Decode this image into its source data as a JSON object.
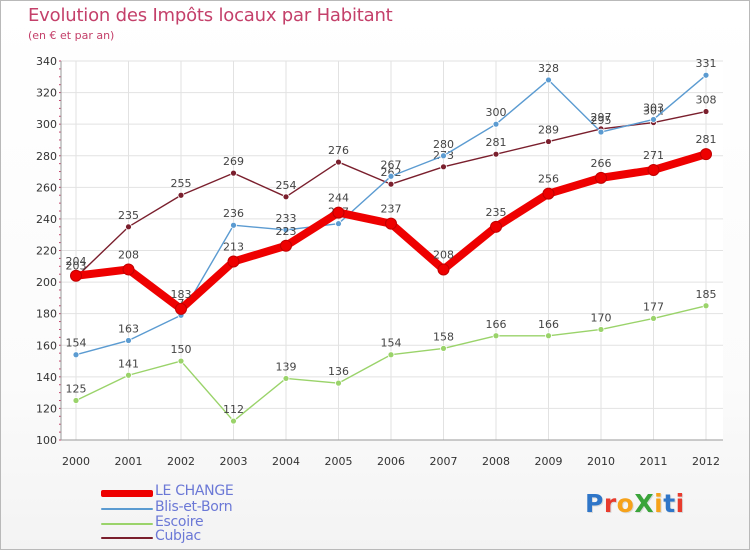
{
  "title": "Evolution des Impôts locaux par Habitant",
  "subtitle": "(en € et par an)",
  "logo_text": "ProXiti",
  "logo_colors": [
    "#2f76c8",
    "#e83b2d",
    "#f6a21a",
    "#3aa43a",
    "#f6a21a",
    "#2f76c8",
    "#e83b2d"
  ],
  "chart_data": {
    "type": "line",
    "title": "Evolution des Impôts locaux par Habitant",
    "ylabel": "(en € et par an)",
    "xlabel": "",
    "x": [
      "2000",
      "2001",
      "2002",
      "2003",
      "2004",
      "2005",
      "2006",
      "2007",
      "2008",
      "2009",
      "2010",
      "2011",
      "2012"
    ],
    "ylim": [
      100,
      340
    ],
    "yticks": [
      "100",
      "120",
      "140",
      "160",
      "180",
      "200",
      "220",
      "240",
      "260",
      "280",
      "300",
      "320",
      "340"
    ],
    "grid": true,
    "legend_position": "bottom-left",
    "series": [
      {
        "name": "Cubjac",
        "color": "#7a1f2d",
        "emphasis": false,
        "values": [
          203,
          235,
          255,
          269,
          254,
          276,
          262,
          273,
          281,
          289,
          297,
          301,
          308
        ],
        "labels": [
          "203",
          "235",
          "255",
          "269",
          "254",
          "276",
          "262",
          "273",
          "281",
          "289",
          "297",
          "301",
          "308"
        ]
      },
      {
        "name": "Blis-et-Born",
        "color": "#5b9bd1",
        "emphasis": false,
        "values": [
          154,
          163,
          179,
          236,
          233,
          237,
          267,
          280,
          300,
          328,
          295,
          303,
          331
        ],
        "labels": [
          "154",
          "163",
          "179",
          "236",
          "233",
          "237",
          "267",
          "280",
          "300",
          "328",
          "295",
          "303",
          "331"
        ]
      },
      {
        "name": "Escoire",
        "color": "#9ad36a",
        "emphasis": false,
        "values": [
          125,
          141,
          150,
          112,
          139,
          136,
          154,
          158,
          166,
          166,
          170,
          177,
          185
        ],
        "labels": [
          "125",
          "141",
          "150",
          "112",
          "139",
          "136",
          "154",
          "158",
          "166",
          "166",
          "170",
          "177",
          "185"
        ]
      },
      {
        "name": "LE CHANGE",
        "color": "#ee0000",
        "emphasis": true,
        "values": [
          204,
          208,
          183,
          213,
          223,
          244,
          237,
          208,
          235,
          256,
          266,
          271,
          281
        ],
        "labels": [
          "204",
          "208",
          "183",
          "213",
          "223",
          "244",
          "237",
          "208",
          "235",
          "256",
          "266",
          "271",
          "281"
        ]
      }
    ],
    "legend": [
      "LE CHANGE",
      "Blis-et-Born",
      "Escoire",
      "Cubjac"
    ]
  }
}
